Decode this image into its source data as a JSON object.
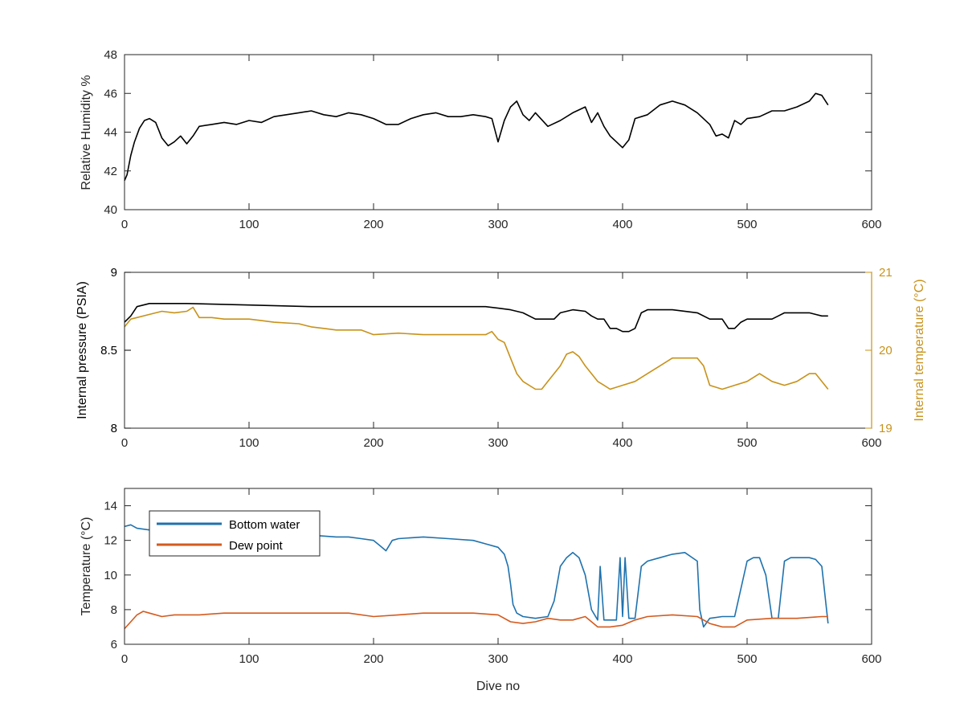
{
  "figure": {
    "background": "#ffffff"
  },
  "chart_data": [
    {
      "type": "line",
      "xlabel": "",
      "ylabel": "Relative Humidity %",
      "xlim": [
        0,
        600
      ],
      "ylim": [
        40,
        48
      ],
      "xticks": [
        0,
        100,
        200,
        300,
        400,
        500,
        600
      ],
      "yticks": [
        40,
        42,
        44,
        46,
        48
      ],
      "grid": false,
      "series": [
        {
          "name": "",
          "color": "#000000",
          "x": [
            0,
            2,
            5,
            8,
            12,
            16,
            20,
            25,
            30,
            35,
            40,
            45,
            50,
            55,
            60,
            70,
            80,
            90,
            100,
            110,
            120,
            130,
            140,
            150,
            160,
            170,
            180,
            190,
            200,
            210,
            220,
            230,
            240,
            250,
            260,
            270,
            280,
            290,
            295,
            300,
            305,
            310,
            315,
            320,
            325,
            330,
            340,
            350,
            360,
            370,
            375,
            380,
            385,
            390,
            395,
            400,
            405,
            410,
            420,
            430,
            440,
            450,
            460,
            470,
            475,
            480,
            485,
            490,
            495,
            500,
            510,
            520,
            530,
            540,
            550,
            555,
            560,
            565
          ],
          "y": [
            41.5,
            41.8,
            42.8,
            43.5,
            44.2,
            44.6,
            44.7,
            44.5,
            43.7,
            43.3,
            43.5,
            43.8,
            43.4,
            43.8,
            44.3,
            44.4,
            44.5,
            44.4,
            44.6,
            44.5,
            44.8,
            44.9,
            45.0,
            45.1,
            44.9,
            44.8,
            45.0,
            44.9,
            44.7,
            44.4,
            44.4,
            44.7,
            44.9,
            45.0,
            44.8,
            44.8,
            44.9,
            44.8,
            44.7,
            43.5,
            44.6,
            45.3,
            45.6,
            44.9,
            44.6,
            45.0,
            44.3,
            44.6,
            45.0,
            45.3,
            44.5,
            45.0,
            44.3,
            43.8,
            43.5,
            43.2,
            43.6,
            44.7,
            44.9,
            45.4,
            45.6,
            45.4,
            45.0,
            44.4,
            43.8,
            43.9,
            43.7,
            44.6,
            44.4,
            44.7,
            44.8,
            45.1,
            45.1,
            45.3,
            45.6,
            46.0,
            45.9,
            45.4
          ]
        }
      ]
    },
    {
      "type": "line",
      "xlabel": "",
      "ylabel": "Internal pressure (PSIA)",
      "ylabel_right": "Internal temperature (°C)",
      "xlim": [
        0,
        600
      ],
      "ylim": [
        8,
        9
      ],
      "ylim_right": [
        19,
        21
      ],
      "xticks": [
        0,
        100,
        200,
        300,
        400,
        500,
        600
      ],
      "yticks": [
        "8",
        "8.5",
        "9"
      ],
      "yticks_right": [
        19,
        20,
        21
      ],
      "grid": false,
      "series": [
        {
          "name": "",
          "axis": "left",
          "color": "#000000",
          "x": [
            0,
            5,
            10,
            20,
            50,
            100,
            150,
            200,
            250,
            290,
            300,
            310,
            320,
            330,
            340,
            345,
            350,
            360,
            370,
            375,
            380,
            385,
            390,
            395,
            400,
            405,
            410,
            415,
            420,
            440,
            460,
            470,
            480,
            485,
            490,
            495,
            500,
            520,
            525,
            530,
            540,
            550,
            560,
            565
          ],
          "y": [
            8.68,
            8.72,
            8.78,
            8.8,
            8.8,
            8.79,
            8.78,
            8.78,
            8.78,
            8.78,
            8.77,
            8.76,
            8.74,
            8.7,
            8.7,
            8.7,
            8.74,
            8.76,
            8.75,
            8.72,
            8.7,
            8.7,
            8.64,
            8.64,
            8.62,
            8.62,
            8.64,
            8.74,
            8.76,
            8.76,
            8.74,
            8.7,
            8.7,
            8.64,
            8.64,
            8.68,
            8.7,
            8.7,
            8.72,
            8.74,
            8.74,
            8.74,
            8.72,
            8.72
          ]
        },
        {
          "name": "",
          "axis": "right",
          "color": "#C8921A",
          "x": [
            0,
            5,
            10,
            20,
            30,
            40,
            50,
            55,
            60,
            70,
            80,
            90,
            100,
            110,
            120,
            140,
            150,
            160,
            170,
            180,
            190,
            200,
            220,
            240,
            260,
            280,
            290,
            295,
            300,
            305,
            310,
            315,
            320,
            330,
            335,
            340,
            350,
            355,
            360,
            365,
            370,
            380,
            385,
            390,
            400,
            410,
            420,
            430,
            440,
            450,
            460,
            465,
            470,
            480,
            490,
            500,
            510,
            520,
            530,
            540,
            550,
            555,
            560,
            565
          ],
          "y": [
            20.3,
            20.4,
            20.42,
            20.46,
            20.5,
            20.48,
            20.5,
            20.55,
            20.42,
            20.42,
            20.4,
            20.4,
            20.4,
            20.38,
            20.36,
            20.34,
            20.3,
            20.28,
            20.26,
            20.26,
            20.26,
            20.2,
            20.22,
            20.2,
            20.2,
            20.2,
            20.2,
            20.24,
            20.14,
            20.1,
            19.9,
            19.7,
            19.6,
            19.5,
            19.5,
            19.6,
            19.8,
            19.95,
            19.98,
            19.92,
            19.8,
            19.6,
            19.55,
            19.5,
            19.55,
            19.6,
            19.7,
            19.8,
            19.9,
            19.9,
            19.9,
            19.8,
            19.55,
            19.5,
            19.55,
            19.6,
            19.7,
            19.6,
            19.55,
            19.6,
            19.7,
            19.7,
            19.6,
            19.5
          ]
        }
      ]
    },
    {
      "type": "line",
      "xlabel": "Dive no",
      "ylabel": "Temperature (°C)",
      "xlim": [
        0,
        600
      ],
      "ylim": [
        6,
        15
      ],
      "xticks": [
        0,
        100,
        200,
        300,
        400,
        500,
        600
      ],
      "yticks": [
        6,
        8,
        10,
        12,
        14
      ],
      "grid": false,
      "legend_position": "top-left",
      "series": [
        {
          "name": "Bottom water",
          "color": "#1F72AE",
          "x": [
            0,
            5,
            10,
            20,
            30,
            50,
            80,
            100,
            120,
            150,
            170,
            180,
            190,
            200,
            205,
            210,
            215,
            220,
            240,
            260,
            280,
            290,
            300,
            305,
            308,
            310,
            312,
            315,
            320,
            330,
            340,
            345,
            350,
            355,
            360,
            365,
            370,
            375,
            380,
            382,
            385,
            390,
            395,
            398,
            400,
            402,
            405,
            408,
            410,
            415,
            420,
            430,
            440,
            450,
            460,
            462,
            465,
            470,
            480,
            490,
            500,
            505,
            510,
            515,
            520,
            525,
            530,
            535,
            540,
            550,
            555,
            560,
            565
          ],
          "y": [
            12.8,
            12.9,
            12.7,
            12.6,
            12.6,
            12.5,
            12.4,
            12.4,
            12.4,
            12.3,
            12.2,
            12.2,
            12.1,
            12.0,
            11.7,
            11.4,
            12.0,
            12.1,
            12.2,
            12.1,
            12.0,
            11.8,
            11.6,
            11.2,
            10.5,
            9.5,
            8.3,
            7.8,
            7.6,
            7.5,
            7.6,
            8.5,
            10.5,
            11.0,
            11.3,
            11.0,
            10.0,
            8.0,
            7.4,
            10.5,
            7.4,
            7.4,
            7.4,
            11.0,
            7.6,
            11.0,
            7.5,
            7.5,
            7.5,
            10.5,
            10.8,
            11.0,
            11.2,
            11.3,
            10.8,
            8.0,
            7.0,
            7.5,
            7.6,
            7.6,
            10.8,
            11.0,
            11.0,
            10.0,
            7.5,
            7.5,
            10.8,
            11.0,
            11.0,
            11.0,
            10.9,
            10.5,
            7.2
          ]
        },
        {
          "name": "Dew point",
          "color": "#D45A1E",
          "x": [
            0,
            5,
            10,
            15,
            20,
            30,
            40,
            60,
            80,
            100,
            120,
            140,
            160,
            180,
            200,
            220,
            240,
            260,
            280,
            300,
            310,
            320,
            330,
            340,
            350,
            360,
            370,
            380,
            390,
            400,
            410,
            420,
            440,
            460,
            470,
            480,
            490,
            500,
            520,
            540,
            560,
            565
          ],
          "y": [
            6.9,
            7.3,
            7.7,
            7.9,
            7.8,
            7.6,
            7.7,
            7.7,
            7.8,
            7.8,
            7.8,
            7.8,
            7.8,
            7.8,
            7.6,
            7.7,
            7.8,
            7.8,
            7.8,
            7.7,
            7.3,
            7.2,
            7.3,
            7.5,
            7.4,
            7.4,
            7.6,
            7.0,
            7.0,
            7.1,
            7.4,
            7.6,
            7.7,
            7.6,
            7.2,
            7.0,
            7.0,
            7.4,
            7.5,
            7.5,
            7.6,
            7.6
          ]
        }
      ]
    }
  ]
}
